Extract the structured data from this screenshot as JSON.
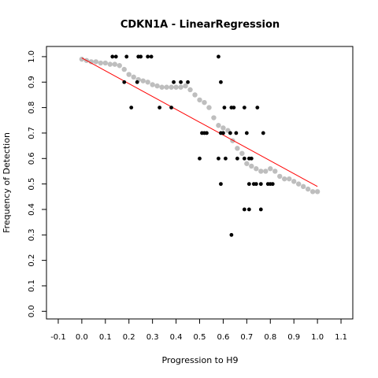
{
  "chart_data": {
    "type": "scatter",
    "title": "CDKN1A - LinearRegression",
    "xlabel": "Progression to H9",
    "ylabel": "Frequency of Detection",
    "xlim": [
      -0.15,
      1.15
    ],
    "ylim": [
      -0.03,
      1.04
    ],
    "x_ticks": [
      "-0.1",
      "0.0",
      "0.1",
      "0.2",
      "0.3",
      "0.4",
      "0.5",
      "0.6",
      "0.7",
      "0.8",
      "0.9",
      "1.0",
      "1.1"
    ],
    "y_ticks": [
      "0.0",
      "0.1",
      "0.2",
      "0.3",
      "0.4",
      "0.5",
      "0.6",
      "0.7",
      "0.8",
      "0.9",
      "1.0"
    ],
    "grid": false,
    "colors": {
      "points": "#000000",
      "smoothed": "#bebebe",
      "regression": "#ff0000"
    },
    "series": [
      {
        "kind": "points",
        "x": [
          0.13,
          0.145,
          0.19,
          0.18,
          0.235,
          0.24,
          0.25,
          0.28,
          0.295,
          0.21,
          0.33,
          0.38,
          0.39,
          0.42,
          0.45,
          0.58,
          0.59,
          0.605,
          0.6,
          0.635,
          0.645,
          0.655,
          0.69,
          0.745,
          0.77,
          0.58,
          0.5,
          0.51,
          0.52,
          0.53,
          0.59,
          0.61,
          0.63,
          0.66,
          0.69,
          0.7,
          0.71,
          0.72,
          0.59,
          0.71,
          0.73,
          0.74,
          0.76,
          0.79,
          0.8,
          0.81,
          0.69,
          0.71,
          0.76,
          0.635
        ],
        "y": [
          1.0,
          1.0,
          1.0,
          0.9,
          0.9,
          1.0,
          1.0,
          1.0,
          1.0,
          0.8,
          0.8,
          0.8,
          0.9,
          0.9,
          0.9,
          1.0,
          0.9,
          0.8,
          0.7,
          0.8,
          0.8,
          0.7,
          0.8,
          0.8,
          0.7,
          0.6,
          0.6,
          0.7,
          0.7,
          0.7,
          0.7,
          0.6,
          0.7,
          0.6,
          0.6,
          0.7,
          0.6,
          0.6,
          0.5,
          0.5,
          0.5,
          0.5,
          0.5,
          0.5,
          0.5,
          0.5,
          0.4,
          0.4,
          0.4,
          0.3
        ]
      },
      {
        "kind": "smoothed",
        "x": [
          0.0,
          0.02,
          0.04,
          0.06,
          0.08,
          0.1,
          0.12,
          0.14,
          0.16,
          0.18,
          0.2,
          0.22,
          0.24,
          0.26,
          0.28,
          0.3,
          0.32,
          0.34,
          0.36,
          0.38,
          0.4,
          0.42,
          0.44,
          0.46,
          0.48,
          0.5,
          0.52,
          0.54,
          0.56,
          0.58,
          0.6,
          0.62,
          0.64,
          0.66,
          0.68,
          0.7,
          0.72,
          0.74,
          0.76,
          0.78,
          0.8,
          0.82,
          0.84,
          0.86,
          0.88,
          0.9,
          0.92,
          0.94,
          0.96,
          0.98,
          1.0
        ],
        "y": [
          0.99,
          0.985,
          0.98,
          0.98,
          0.975,
          0.975,
          0.97,
          0.97,
          0.965,
          0.95,
          0.93,
          0.92,
          0.91,
          0.905,
          0.9,
          0.89,
          0.885,
          0.88,
          0.88,
          0.88,
          0.88,
          0.88,
          0.885,
          0.87,
          0.85,
          0.83,
          0.82,
          0.8,
          0.76,
          0.73,
          0.72,
          0.71,
          0.67,
          0.64,
          0.62,
          0.58,
          0.57,
          0.56,
          0.55,
          0.55,
          0.56,
          0.55,
          0.53,
          0.52,
          0.52,
          0.51,
          0.5,
          0.49,
          0.48,
          0.47,
          0.47
        ]
      },
      {
        "kind": "regression",
        "x": [
          0.0,
          1.0
        ],
        "y": [
          0.995,
          0.49
        ]
      }
    ]
  }
}
